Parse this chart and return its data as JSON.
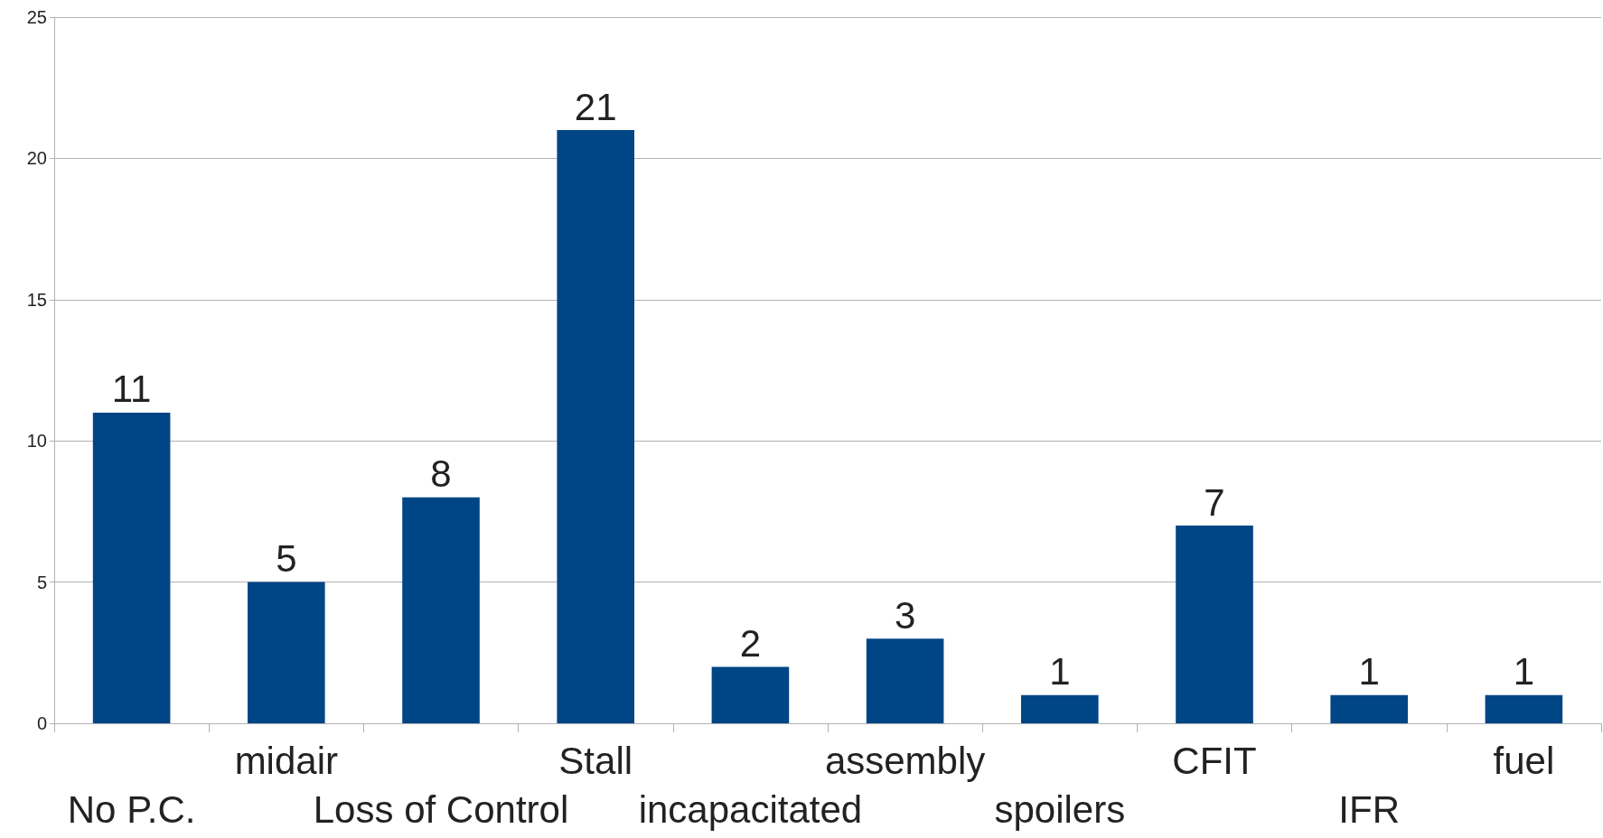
{
  "chart_data": {
    "type": "bar",
    "categories": [
      "No P.C.",
      "midair",
      "Loss of Control",
      "Stall",
      "incapacitated",
      "assembly",
      "spoilers",
      "CFIT",
      "IFR",
      "fuel"
    ],
    "values": [
      11,
      5,
      8,
      21,
      2,
      3,
      1,
      7,
      1,
      1
    ],
    "color": "#004586",
    "ylim": [
      0,
      25
    ],
    "yticks": [
      0,
      5,
      10,
      15,
      20,
      25
    ],
    "grid": "y",
    "data_labels": true
  }
}
